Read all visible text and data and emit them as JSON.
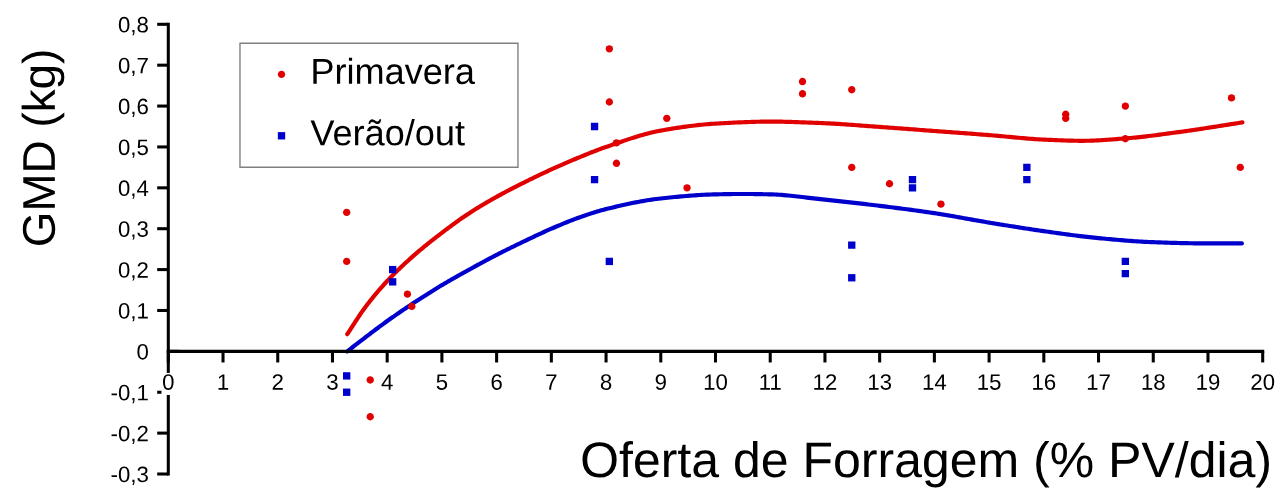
{
  "chart_data": {
    "type": "scatter",
    "xlabel": "Oferta de Forragem (% PV/dia)",
    "ylabel": "GMD (kg)",
    "xlim": [
      0,
      20
    ],
    "ylim": [
      -0.3,
      0.8
    ],
    "xticks": [
      0,
      1,
      2,
      3,
      4,
      5,
      6,
      7,
      8,
      9,
      10,
      11,
      12,
      13,
      14,
      15,
      16,
      17,
      18,
      19,
      20
    ],
    "yticks": [
      {
        "value": -0.3,
        "label": "-0,3"
      },
      {
        "value": -0.2,
        "label": "-0,2"
      },
      {
        "value": -0.1,
        "label": "-0,1"
      },
      0,
      {
        "value": 0.1,
        "label": "0,1"
      },
      {
        "value": 0.2,
        "label": "0,2"
      },
      {
        "value": 0.3,
        "label": "0,3"
      },
      {
        "value": 0.4,
        "label": "0,4"
      },
      {
        "value": 0.5,
        "label": "0,5"
      },
      {
        "value": 0.6,
        "label": "0,6"
      },
      {
        "value": 0.7,
        "label": "0,7"
      },
      {
        "value": 0.8,
        "label": "0,8"
      }
    ],
    "grid": false,
    "legend": "top left",
    "series": [
      {
        "name": "Primavera",
        "color": "#e00000",
        "marker": "circle",
        "x": [
          3.26,
          3.26,
          3.69,
          3.69,
          4.37,
          4.45,
          8.06,
          8.06,
          8.19,
          8.19,
          9.11,
          9.48,
          11.59,
          11.59,
          12.49,
          12.49,
          13.18,
          14.12,
          16.4,
          16.4,
          17.49,
          17.49,
          19.43,
          19.59
        ],
        "values": [
          0.34,
          0.22,
          -0.07,
          -0.16,
          0.14,
          0.11,
          0.74,
          0.61,
          0.51,
          0.46,
          0.57,
          0.4,
          0.66,
          0.63,
          0.64,
          0.45,
          0.41,
          0.36,
          0.58,
          0.57,
          0.6,
          0.52,
          0.62,
          0.45
        ]
      },
      {
        "name": "Verão/out",
        "color": "#0000cc",
        "marker": "square",
        "x": [
          3.26,
          3.26,
          4.1,
          4.1,
          7.79,
          7.79,
          8.06,
          12.49,
          12.49,
          13.6,
          13.6,
          15.69,
          15.69,
          17.49,
          17.49
        ],
        "values": [
          -0.06,
          -0.1,
          0.2,
          0.17,
          0.55,
          0.42,
          0.22,
          0.26,
          0.18,
          0.42,
          0.4,
          0.45,
          0.42,
          0.22,
          0.19
        ]
      },
      {
        "type": "line",
        "color": "#e00000",
        "marker": "none",
        "line_style": "solid",
        "x": [
          3.27,
          3.6,
          4.0,
          4.5,
          5.0,
          5.5,
          6.0,
          6.5,
          7.0,
          7.5,
          8.0,
          9.0,
          10.0,
          11.0,
          12.0,
          13.0,
          14.0,
          15.0,
          16.0,
          16.7,
          17.5,
          18.5,
          19.63
        ],
        "values": [
          0.042,
          0.108,
          0.172,
          0.236,
          0.29,
          0.338,
          0.378,
          0.413,
          0.445,
          0.474,
          0.5,
          0.54,
          0.557,
          0.562,
          0.558,
          0.549,
          0.539,
          0.529,
          0.518,
          0.515,
          0.521,
          0.537,
          0.56
        ]
      },
      {
        "type": "line",
        "color": "#0000cc",
        "marker": "none",
        "line_style": "solid",
        "x": [
          3.27,
          3.56,
          4.02,
          4.48,
          5.0,
          5.5,
          6.0,
          6.5,
          7.0,
          7.5,
          8.0,
          9.0,
          10.0,
          10.5,
          11.0,
          12.0,
          13.0,
          14.0,
          15.0,
          16.0,
          17.0,
          18.0,
          19.0,
          19.62
        ],
        "values": [
          0.0,
          0.03,
          0.076,
          0.118,
          0.162,
          0.2,
          0.236,
          0.269,
          0.3,
          0.327,
          0.348,
          0.374,
          0.384,
          0.385,
          0.384,
          0.371,
          0.356,
          0.338,
          0.315,
          0.294,
          0.277,
          0.267,
          0.264,
          0.264
        ]
      }
    ]
  }
}
